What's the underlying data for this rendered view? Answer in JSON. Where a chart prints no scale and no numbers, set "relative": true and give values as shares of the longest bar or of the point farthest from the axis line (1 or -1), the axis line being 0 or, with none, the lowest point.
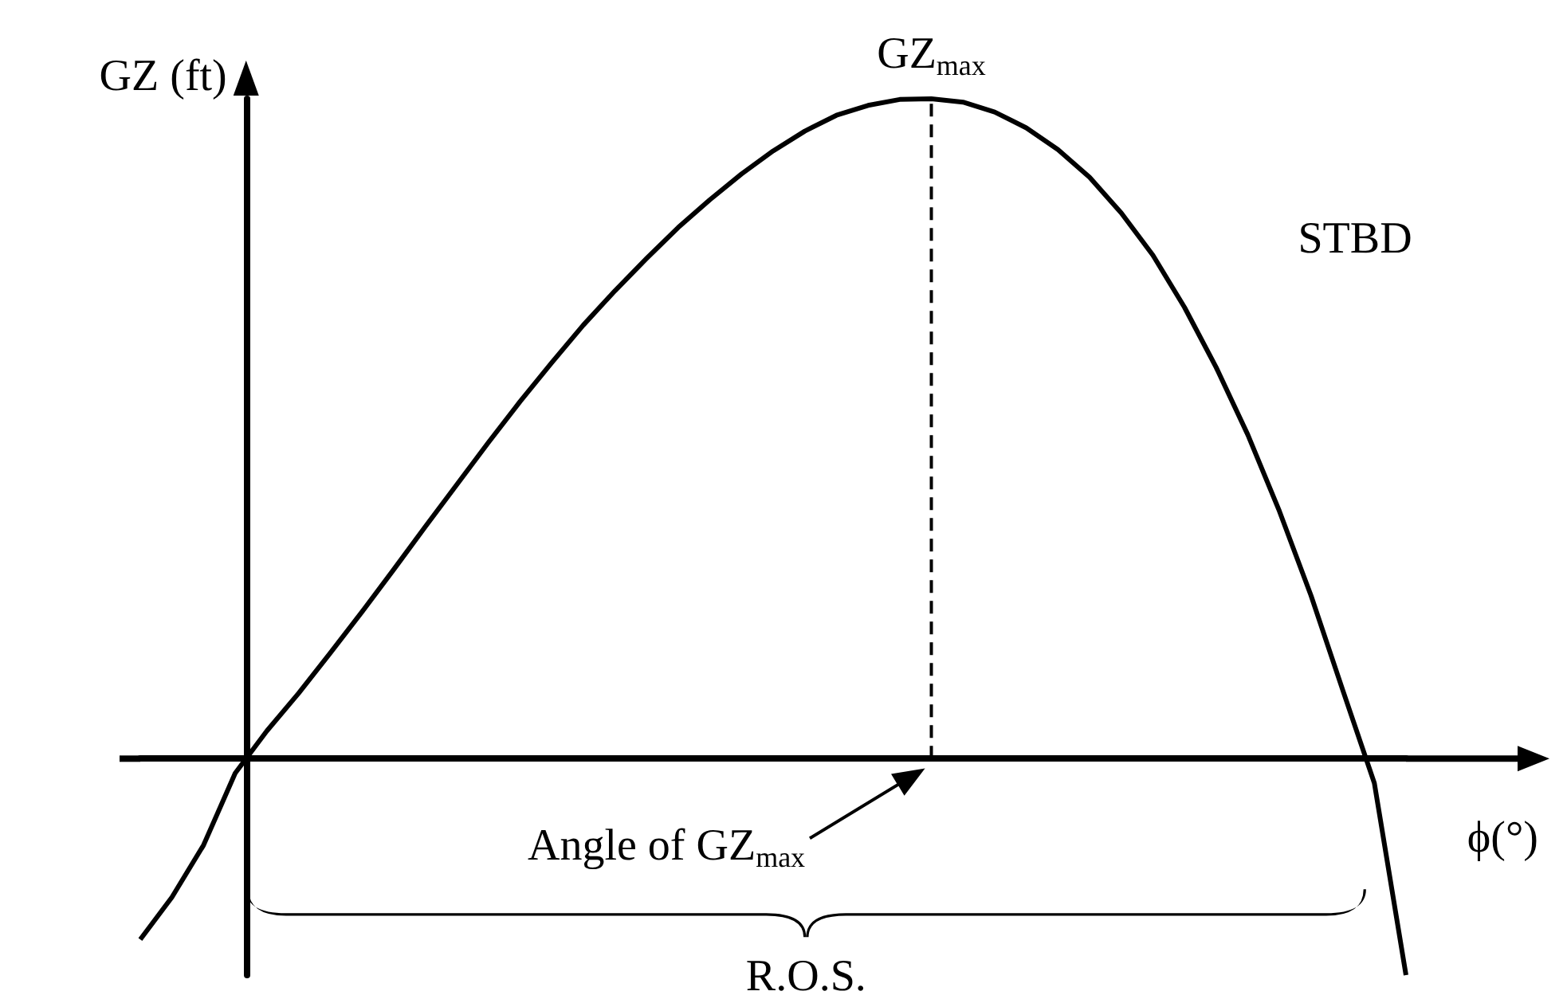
{
  "chart_data": {
    "type": "line",
    "relative": true,
    "xlabel": "ϕ(°)",
    "ylabel": "GZ (ft)",
    "categories": [
      null,
      null,
      null,
      null,
      null,
      null,
      null,
      null,
      null,
      null,
      null,
      null,
      null,
      null,
      null,
      null,
      null,
      null,
      null,
      null,
      null,
      null,
      null,
      null,
      null,
      null,
      null,
      null,
      null,
      null,
      null,
      null,
      null,
      null,
      null,
      null,
      null,
      null,
      null,
      null,
      null
    ],
    "series": [
      {
        "color": "#000000",
        "values": [
          -0.274,
          -0.21,
          -0.131,
          -0.022,
          0.042,
          0.099,
          0.16,
          0.222,
          0.286,
          0.351,
          0.415,
          0.479,
          0.541,
          0.6,
          0.657,
          0.709,
          0.758,
          0.805,
          0.847,
          0.886,
          0.921,
          0.951,
          0.975,
          0.99,
          0.999,
          1,
          0.995,
          0.98,
          0.956,
          0.923,
          0.881,
          0.827,
          0.763,
          0.684,
          0.593,
          0.491,
          0.375,
          0.247,
          0.104,
          -0.037,
          -0.328
        ]
      }
    ],
    "annotations": [
      "GZ$_{max}$",
      "STBD",
      "Angle of GZ$_{max}$",
      "R.O.S."
    ]
  }
}
